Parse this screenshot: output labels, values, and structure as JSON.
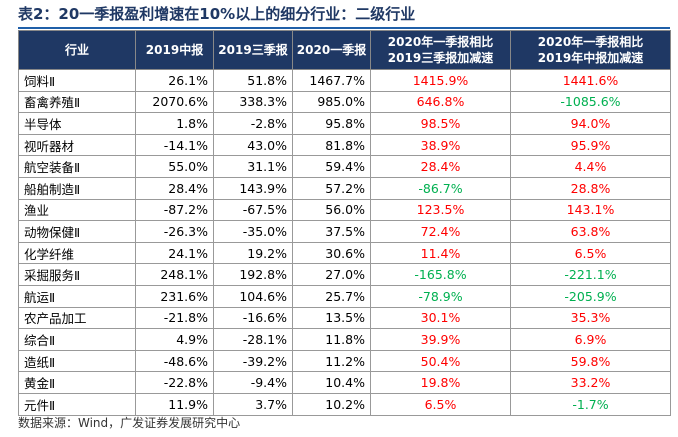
{
  "header": {
    "title": "表2：20一季报盈利增速在10%以上的细分行业：二级行业"
  },
  "table": {
    "columns": [
      "行业",
      "2019中报",
      "2019三季报",
      "2020一季报",
      "2020年一季报相比\n2019三季报加减速",
      "2020年一季报相比\n2019年中报加减速"
    ],
    "rows": [
      [
        "饲料Ⅱ",
        "26.1%",
        "51.8%",
        "1467.7%",
        "1415.9%",
        "1441.6%"
      ],
      [
        "畜禽养殖Ⅱ",
        "2070.6%",
        "338.3%",
        "985.0%",
        "646.8%",
        "-1085.6%"
      ],
      [
        "半导体",
        "1.8%",
        "-2.8%",
        "95.8%",
        "98.5%",
        "94.0%"
      ],
      [
        "视听器材",
        "-14.1%",
        "43.0%",
        "81.8%",
        "38.9%",
        "95.9%"
      ],
      [
        "航空装备Ⅱ",
        "55.0%",
        "31.1%",
        "59.4%",
        "28.4%",
        "4.4%"
      ],
      [
        "船舶制造Ⅱ",
        "28.4%",
        "143.9%",
        "57.2%",
        "-86.7%",
        "28.8%"
      ],
      [
        "渔业",
        "-87.2%",
        "-67.5%",
        "56.0%",
        "123.5%",
        "143.1%"
      ],
      [
        "动物保健Ⅱ",
        "-26.3%",
        "-35.0%",
        "37.5%",
        "72.4%",
        "63.8%"
      ],
      [
        "化学纤维",
        "24.1%",
        "19.2%",
        "30.6%",
        "11.4%",
        "6.5%"
      ],
      [
        "采掘服务Ⅱ",
        "248.1%",
        "192.8%",
        "27.0%",
        "-165.8%",
        "-221.1%"
      ],
      [
        "航运Ⅱ",
        "231.6%",
        "104.6%",
        "25.7%",
        "-78.9%",
        "-205.9%"
      ],
      [
        "农产品加工",
        "-21.8%",
        "-16.6%",
        "13.5%",
        "30.1%",
        "35.3%"
      ],
      [
        "综合Ⅱ",
        "4.9%",
        "-28.1%",
        "11.8%",
        "39.9%",
        "6.9%"
      ],
      [
        "造纸Ⅱ",
        "-48.6%",
        "-39.2%",
        "11.2%",
        "50.4%",
        "59.8%"
      ],
      [
        "黄金Ⅱ",
        "-22.8%",
        "-9.4%",
        "10.4%",
        "19.8%",
        "33.2%"
      ],
      [
        "元件Ⅱ",
        "11.9%",
        "3.7%",
        "10.2%",
        "6.5%",
        "-1.7%"
      ]
    ],
    "positive_color": "#ff0000",
    "negative_color": "#00b050",
    "header_color": "#1f3864"
  },
  "footer": {
    "source": "数据来源：Wind，广发证券发展研究中心"
  }
}
